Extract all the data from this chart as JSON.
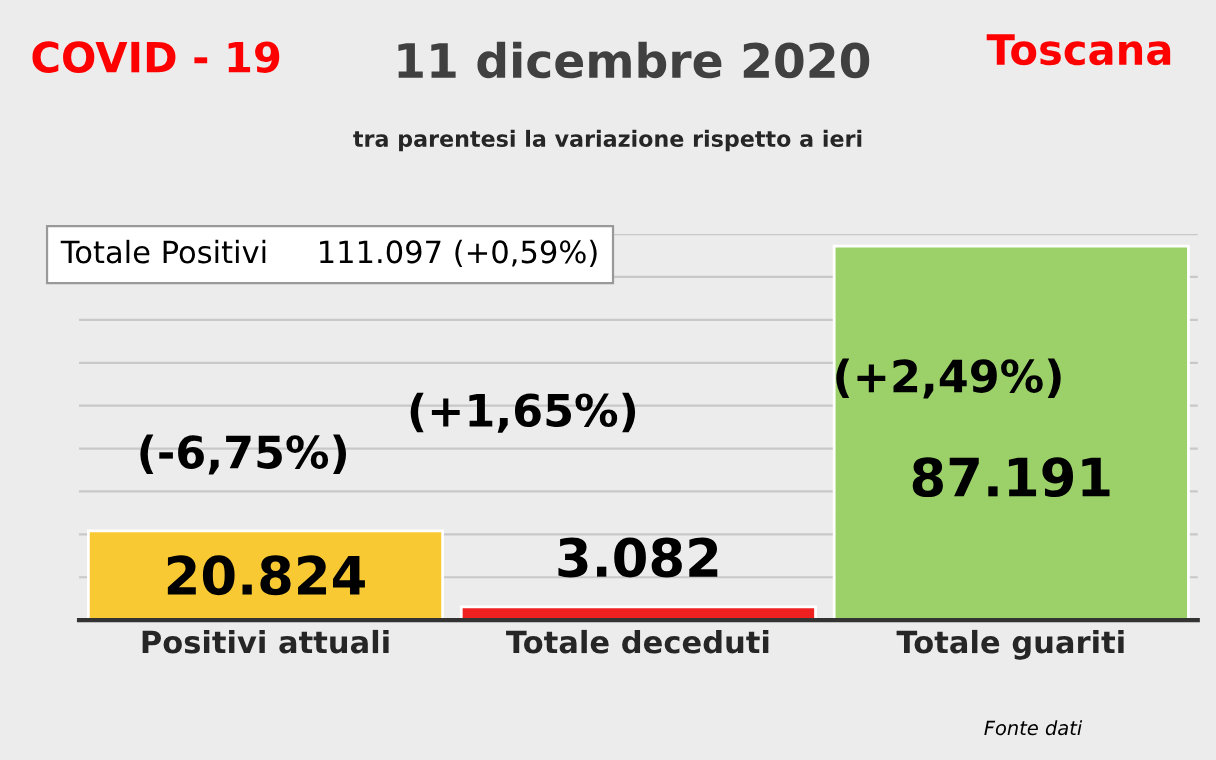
{
  "chart_data": {
    "type": "bar",
    "title": "11 dicembre 2020",
    "subtitle": "tra parentesi la variazione rispetto a ieri",
    "categories": [
      "Positivi attuali",
      "Totale deceduti",
      "Totale guariti"
    ],
    "values": [
      20824,
      3082,
      87191
    ],
    "colors": [
      "#f9c934",
      "#ee2020",
      "#9bd168"
    ],
    "value_labels": [
      "20.824",
      "3.082",
      "87.191"
    ],
    "ylim": [
      0,
      90000
    ],
    "yticks": [
      {
        "value": 0,
        "label": null
      },
      {
        "value": 10000,
        "label": null
      },
      {
        "value": 20000,
        "label": null
      },
      {
        "value": 30000,
        "label": null
      },
      {
        "value": 40000,
        "label": null
      },
      {
        "value": 50000,
        "label": null
      },
      {
        "value": 60000,
        "label": null
      },
      {
        "value": 70000,
        "label": null
      },
      {
        "value": 80000,
        "label": null
      },
      {
        "value": 90000,
        "label": null
      }
    ],
    "tick_labels": "x",
    "grid": "y",
    "legend": false,
    "annotations": [
      "COVID - 19",
      "Toscana",
      "Totale Positivi     111.097 (+0,59%)",
      "(-6,75%)",
      "(+1,65%)",
      "(+2,49%)",
      "Fonte dati"
    ]
  }
}
